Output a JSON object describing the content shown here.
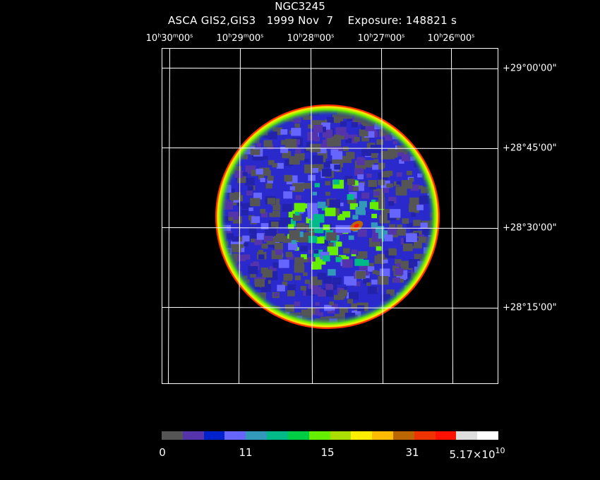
{
  "header": {
    "object": "NGC3245",
    "instrument": "ASCA GIS2,GIS3",
    "date": "1999 Nov  7",
    "exposure": "Exposure: 148821 s"
  },
  "ra_ticks": [
    {
      "h": "10",
      "m": "30",
      "s": "00"
    },
    {
      "h": "10",
      "m": "29",
      "s": "00"
    },
    {
      "h": "10",
      "m": "28",
      "s": "00"
    },
    {
      "h": "10",
      "m": "27",
      "s": "00"
    },
    {
      "h": "10",
      "m": "26",
      "s": "00"
    }
  ],
  "dec_ticks": [
    "+29°00'00\"",
    "+28°45'00\"",
    "+28°30'00\"",
    "+28°15'00\""
  ],
  "colorbar": {
    "colors": [
      "#555555",
      "#5533aa",
      "#0022cc",
      "#6666ff",
      "#3399bb",
      "#00bb88",
      "#00cc44",
      "#66ee00",
      "#aadd00",
      "#ffee00",
      "#ffbb00",
      "#bb6600",
      "#ee3300",
      "#ff1100",
      "#dddddd",
      "#ffffff"
    ],
    "labels": [
      "0",
      "11",
      "15",
      "31"
    ],
    "max_label_mantissa": "5.17×10",
    "max_label_exp": "10"
  },
  "colors": {
    "background": "#000000",
    "grid": "#ffffff",
    "field_edge": "#ff3300",
    "bright_source": "#bb6600"
  }
}
